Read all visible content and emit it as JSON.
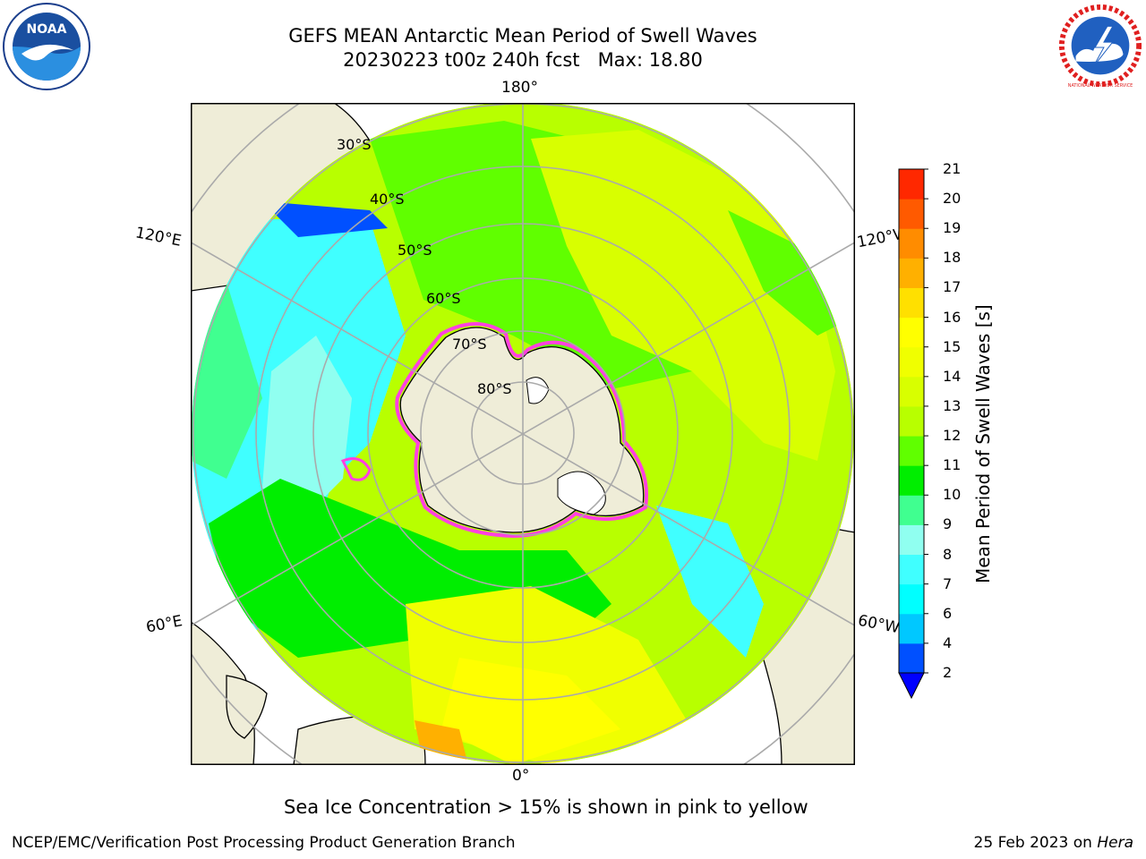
{
  "title_line1": "GEFS MEAN Antarctic Mean Period of Swell Waves",
  "title_line2": "20230223 t00z 240h fcst   Max: 18.80",
  "map": {
    "lon_labels": [
      "180°",
      "120°E",
      "120°W",
      "60°E",
      "60°W",
      "0°"
    ],
    "lat_labels": [
      "30°S",
      "40°S",
      "50°S",
      "60°S",
      "70°S",
      "80°S"
    ]
  },
  "colorbar": {
    "label": "Mean Period of Swell Waves [s]",
    "ticks": [
      "2",
      "4",
      "6",
      "7",
      "8",
      "9",
      "10",
      "11",
      "12",
      "13",
      "14",
      "15",
      "16",
      "17",
      "18",
      "19",
      "20",
      "21"
    ],
    "colors": [
      "#0050ff",
      "#00c8ff",
      "#00ffff",
      "#40ffff",
      "#90fff0",
      "#40ff90",
      "#00ee00",
      "#60ff00",
      "#b8ff00",
      "#d8ff00",
      "#f0ff00",
      "#ffff00",
      "#ffe000",
      "#ffb000",
      "#ff8c00",
      "#ff5a00",
      "#ff2800",
      "#ff0000"
    ],
    "under_color": "#0000ff"
  },
  "footer_note": "Sea Ice Concentration > 15% is shown in pink to yellow",
  "credit": "NCEP/EMC/Verification Post Processing Product Generation Branch",
  "date_prefix": "25 Feb 2023 on ",
  "date_host": "Hera",
  "logos": {
    "noaa_text": "NOAA",
    "nws_text": "NATIONAL WEATHER SERVICE"
  }
}
